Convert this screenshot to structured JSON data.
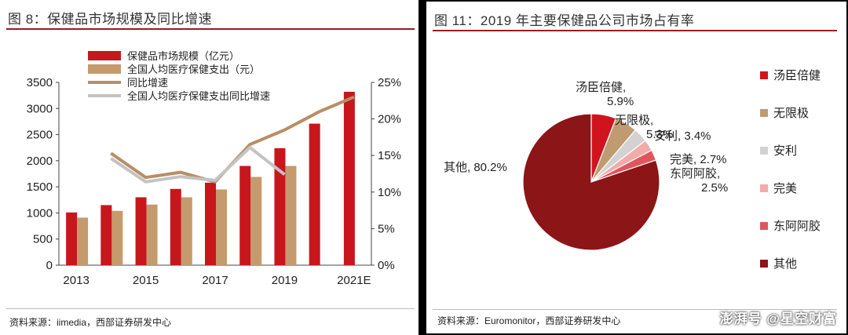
{
  "left": {
    "title": "图 8：保健品市场规模及同比增速",
    "source": "资料来源：iimedia，西部证券研发中心",
    "chart_data": {
      "type": "bar",
      "x": [
        "2013",
        "2014",
        "2015",
        "2016",
        "2017",
        "2018",
        "2019",
        "2020",
        "2021E"
      ],
      "x_tick_labels": [
        "2013",
        "2015",
        "2017",
        "2019",
        "2021E"
      ],
      "y_left_ticks": [
        "0",
        "500",
        "1000",
        "1500",
        "2000",
        "2500",
        "3000",
        "3500"
      ],
      "y_right_ticks": [
        "0%",
        "5%",
        "10%",
        "15%",
        "20%",
        "25%"
      ],
      "ylim_left": [
        0,
        3500
      ],
      "ylim_right": [
        0,
        25
      ],
      "series": [
        {
          "name": "保健品市场规模（亿元）",
          "kind": "bar",
          "axis": "left",
          "color": "#c8161d",
          "values": [
            1010,
            1150,
            1300,
            1460,
            1580,
            1900,
            2240,
            2710,
            3320
          ]
        },
        {
          "name": "全国人均医疗保健支出（元）",
          "kind": "bar",
          "axis": "left",
          "color": "#c59a6d",
          "values": [
            910,
            1040,
            1160,
            1300,
            1450,
            1690,
            1900,
            null,
            null
          ]
        },
        {
          "name": "同比增速",
          "kind": "line",
          "axis": "right",
          "color": "#b88e66",
          "values": [
            null,
            15.3,
            12.0,
            12.7,
            11.4,
            16.5,
            18.5,
            21.0,
            23.0
          ]
        },
        {
          "name": "全国人均医疗保健支出同比增速",
          "kind": "line",
          "axis": "right",
          "color": "#c3c3c3",
          "values": [
            null,
            14.6,
            11.4,
            12.1,
            11.6,
            16.1,
            12.4,
            null,
            null
          ]
        }
      ]
    }
  },
  "right": {
    "title": "图 11：2019 年主要保健品公司市场占有率",
    "source": "资料来源：Euromonitor，西部证券研发中心",
    "watermark": "澎湃号 @星空财富",
    "chart_data": {
      "type": "pie",
      "slices": [
        {
          "name": "汤臣倍健",
          "value": 5.9,
          "color": "#d0141e"
        },
        {
          "name": "无限极",
          "value": 5.3,
          "color": "#c09a70"
        },
        {
          "name": "安利",
          "value": 3.4,
          "color": "#d2d2d2"
        },
        {
          "name": "完美",
          "value": 2.7,
          "color": "#f1aca8"
        },
        {
          "name": "东阿阿胶",
          "value": 2.5,
          "color": "#e0565f"
        },
        {
          "name": "其他",
          "value": 80.2,
          "color": "#8c1517"
        }
      ],
      "data_labels": [
        {
          "line1": "汤臣倍健,",
          "line2": "5.9%"
        },
        {
          "line1": "无限极,",
          "line2": "5.3%"
        },
        {
          "line1": "安利, 3.4%",
          "line2": ""
        },
        {
          "line1": "完美, 2.7%",
          "line2": ""
        },
        {
          "line1": "东阿阿胶,",
          "line2": "2.5%"
        },
        {
          "line1": "其他, 80.2%",
          "line2": ""
        }
      ]
    }
  }
}
